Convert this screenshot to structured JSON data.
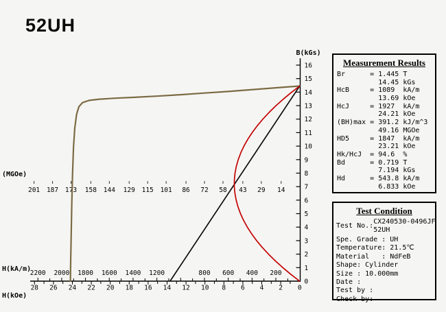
{
  "header": {
    "grade": "52UH"
  },
  "chart_data": {
    "type": "line",
    "axes": {
      "b": {
        "label": "B(kGs)",
        "min": 0,
        "max": 16,
        "ticks": [
          0,
          1,
          2,
          3,
          4,
          5,
          6,
          7,
          8,
          9,
          10,
          11,
          12,
          13,
          14,
          15,
          16
        ]
      },
      "h_kam": {
        "label": "H(kA/m)",
        "tick_values": [
          2200,
          2000,
          1800,
          1600,
          1400,
          1200,
          1000,
          800,
          600,
          400,
          200
        ],
        "tick_labels": [
          "2200",
          "2000",
          "1800",
          "1600",
          "1400",
          "1200",
          "",
          "800",
          "600",
          "400",
          "200"
        ]
      },
      "h_koe": {
        "label": "H(kOe)",
        "ticks": [
          28,
          26,
          24,
          22,
          20,
          18,
          16,
          14,
          12,
          10,
          8,
          6,
          4,
          2,
          0
        ]
      },
      "mgoe": {
        "label": "(MGOe)",
        "ticks": [
          201,
          187,
          173,
          158,
          144,
          129,
          115,
          101,
          86,
          72,
          58,
          43,
          29,
          14
        ]
      }
    },
    "series": [
      {
        "name": "intrinsic-curve-JH",
        "color": "#7b6b44",
        "width": 2.2,
        "x_unit": "kA/m",
        "points": [
          [
            0,
            14.45
          ],
          [
            150,
            14.35
          ],
          [
            300,
            14.25
          ],
          [
            450,
            14.15
          ],
          [
            600,
            14.05
          ],
          [
            800,
            13.93
          ],
          [
            1000,
            13.81
          ],
          [
            1200,
            13.7
          ],
          [
            1400,
            13.61
          ],
          [
            1550,
            13.55
          ],
          [
            1680,
            13.48
          ],
          [
            1770,
            13.39
          ],
          [
            1825,
            13.22
          ],
          [
            1855,
            12.92
          ],
          [
            1875,
            12.35
          ],
          [
            1890,
            11.35
          ],
          [
            1901,
            9.9
          ],
          [
            1909,
            7.9
          ],
          [
            1915,
            5.7
          ],
          [
            1920,
            3.5
          ],
          [
            1924,
            1.7
          ],
          [
            1927,
            0
          ]
        ]
      },
      {
        "name": "normal-curve-BH",
        "color": "#0d0d0d",
        "width": 1.7,
        "x_unit": "kA/m",
        "points": [
          [
            0,
            14.45
          ],
          [
            1089,
            0
          ]
        ]
      },
      {
        "name": "energy-product-curve",
        "color": "#c40303",
        "width": 1.7,
        "x_unit": "MGOe",
        "points": [
          [
            0,
            14.45
          ],
          [
            5.97,
            14
          ],
          [
            12.15,
            13.5
          ],
          [
            17.86,
            13
          ],
          [
            23.09,
            12.5
          ],
          [
            27.85,
            12
          ],
          [
            32.14,
            11.5
          ],
          [
            35.95,
            11
          ],
          [
            39.29,
            10.5
          ],
          [
            42.16,
            10
          ],
          [
            44.55,
            9.5
          ],
          [
            46.47,
            9
          ],
          [
            47.92,
            8.5
          ],
          [
            48.89,
            8
          ],
          [
            49.38,
            7.5
          ],
          [
            49.45,
            7.2
          ],
          [
            49.41,
            7
          ],
          [
            48.96,
            6.5
          ],
          [
            48.03,
            6
          ],
          [
            46.64,
            5.5
          ],
          [
            44.76,
            5
          ],
          [
            42.42,
            4.5
          ],
          [
            39.6,
            4
          ],
          [
            36.31,
            3.5
          ],
          [
            32.54,
            3
          ],
          [
            28.3,
            2.5
          ],
          [
            23.59,
            2
          ],
          [
            18.4,
            1.5
          ],
          [
            12.74,
            1
          ],
          [
            6.61,
            0.5
          ],
          [
            0,
            0
          ]
        ]
      }
    ]
  },
  "measurement": {
    "title": "Measurement Results",
    "lines": [
      "Br      = 1.445 T",
      "          14.45 kGs",
      "HcB     = 1089  kA/m",
      "          13.69 kOe",
      "HcJ     = 1927  kA/m",
      "          24.21 kOe",
      "(BH)max = 391.2 kJ/m^3",
      "          49.16 MGOe",
      "HD5     = 1847  kA/m",
      "          23.21 kOe",
      "Hk/HcJ  = 94.6  %",
      "Bd      = 0.719 T",
      "          7.194 kGs",
      "Hd      = 543.8 kA/m",
      "          6.833 kOe"
    ]
  },
  "test_condition": {
    "title": "Test Condition",
    "test_no": {
      "label": "Test No.:",
      "values": [
        "CX240530-0496JF",
        "52UH"
      ]
    },
    "lines": [
      "Spe. Grade : UH",
      "Temperature: 21.5℃",
      "Material   : NdFeB",
      "Shape: Cylinder",
      "Size : 10.000mm",
      "Date :",
      "Test by :",
      "Check by:"
    ]
  }
}
